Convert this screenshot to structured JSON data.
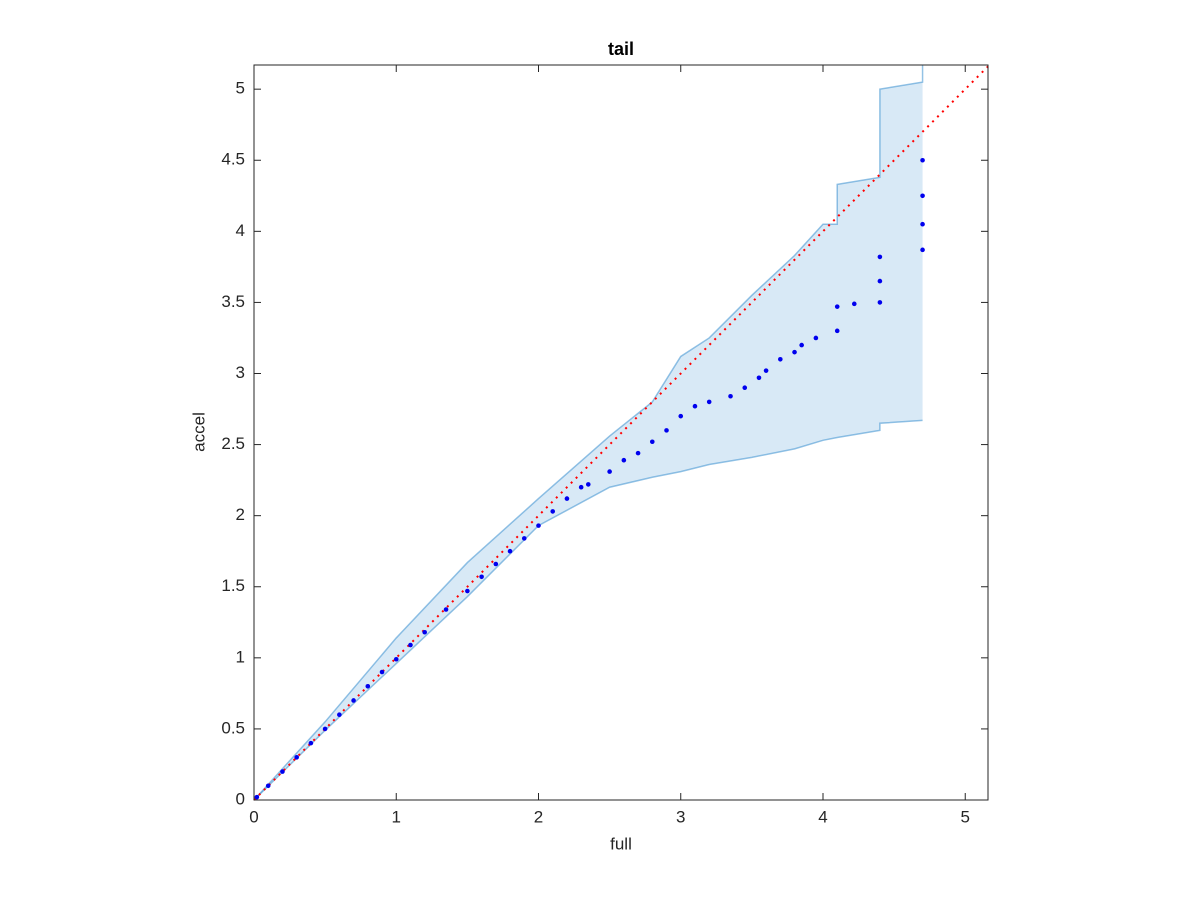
{
  "chart_data": {
    "type": "scatter",
    "title": "tail",
    "xlabel": "full",
    "ylabel": "accel",
    "xlim": [
      0,
      5.16
    ],
    "ylim": [
      0,
      5.17
    ],
    "xticks": [
      0,
      1,
      2,
      3,
      4,
      5
    ],
    "yticks": [
      0,
      0.5,
      1,
      1.5,
      2,
      2.5,
      3,
      3.5,
      4,
      4.5,
      5
    ],
    "band": {
      "color": "#3b8fd0",
      "x": [
        0,
        0.5,
        1,
        1.5,
        2,
        2.5,
        2.8,
        3.0,
        3.2,
        3.5,
        3.8,
        4.0,
        4.1,
        4.1,
        4.4,
        4.4,
        4.7,
        4.7
      ],
      "upper": [
        0,
        0.55,
        1.14,
        1.67,
        2.12,
        2.56,
        2.8,
        3.12,
        3.25,
        3.55,
        3.83,
        4.05,
        4.05,
        4.33,
        4.38,
        5.0,
        5.05,
        5.17
      ],
      "lower": [
        0,
        0.49,
        0.96,
        1.43,
        1.93,
        2.2,
        2.27,
        2.31,
        2.36,
        2.41,
        2.47,
        2.53,
        2.55,
        2.55,
        2.6,
        2.65,
        2.67,
        2.67
      ]
    },
    "reference": {
      "color": "#ff0000",
      "x": [
        0,
        5.16
      ],
      "y": [
        0,
        5.16
      ]
    },
    "series": [
      {
        "color": "#0000ee",
        "x": [
          0.02,
          0.1,
          0.2,
          0.3,
          0.4,
          0.5,
          0.6,
          0.7,
          0.8,
          0.9,
          1.0,
          1.1,
          1.2,
          1.35,
          1.5,
          1.6,
          1.7,
          1.8,
          1.9,
          2.0,
          2.1,
          2.2,
          2.3,
          2.35,
          2.5,
          2.6,
          2.7,
          2.8,
          2.9,
          3.0,
          3.1,
          3.2,
          3.35,
          3.45,
          3.55,
          3.6,
          3.7,
          3.8,
          3.85,
          3.95,
          4.1,
          4.1,
          4.22,
          4.4,
          4.4,
          4.4,
          4.7,
          4.7,
          4.7,
          4.7
        ],
        "y": [
          0.02,
          0.1,
          0.2,
          0.3,
          0.4,
          0.5,
          0.6,
          0.7,
          0.8,
          0.9,
          0.99,
          1.09,
          1.18,
          1.34,
          1.47,
          1.57,
          1.66,
          1.75,
          1.84,
          1.93,
          2.03,
          2.12,
          2.2,
          2.22,
          2.31,
          2.39,
          2.44,
          2.52,
          2.6,
          2.7,
          2.77,
          2.8,
          2.84,
          2.9,
          2.97,
          3.02,
          3.1,
          3.15,
          3.2,
          3.25,
          3.3,
          3.47,
          3.49,
          3.5,
          3.65,
          3.82,
          3.87,
          4.05,
          4.25,
          4.5
        ]
      }
    ]
  }
}
